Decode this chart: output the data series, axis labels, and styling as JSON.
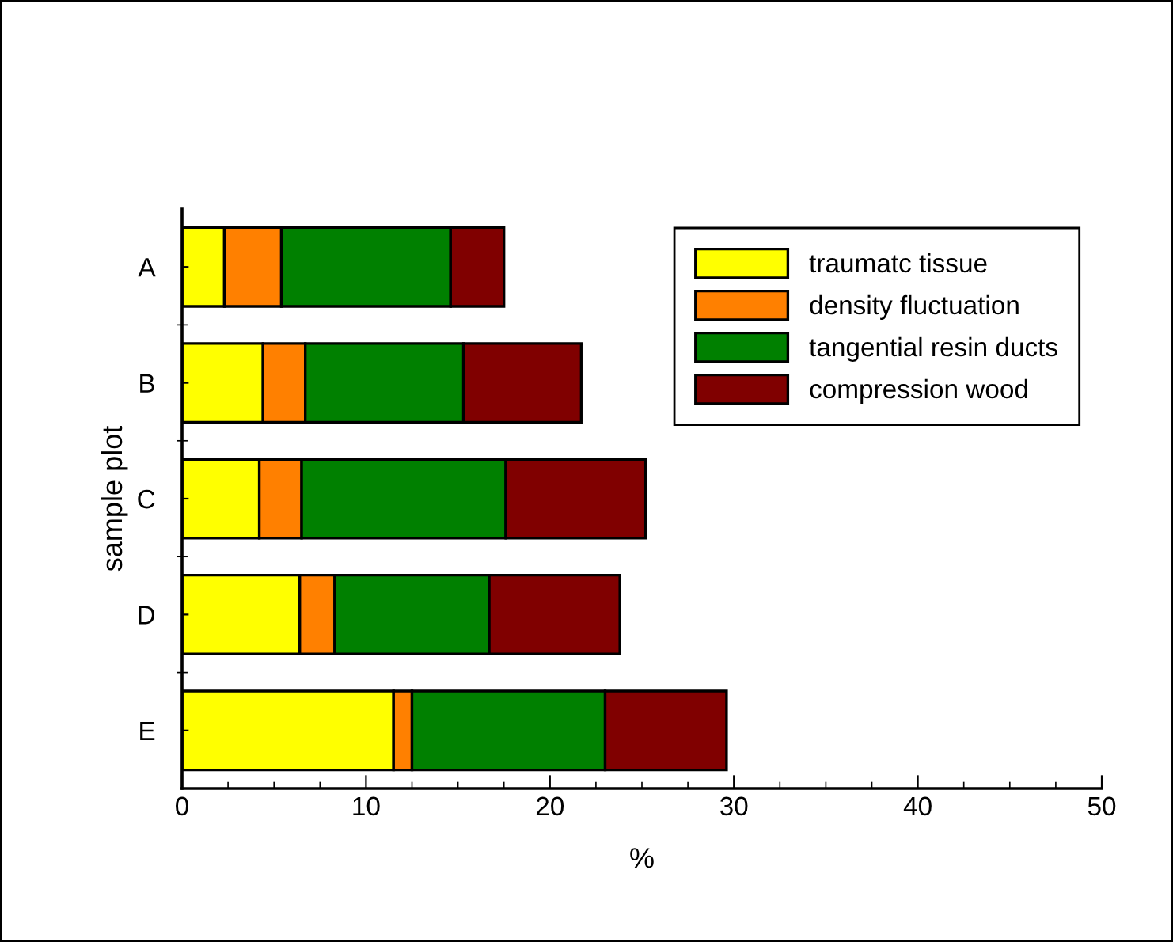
{
  "chart_data": {
    "type": "bar",
    "orientation": "horizontal",
    "stacked": true,
    "xlabel": "%",
    "ylabel": "sample plot",
    "categories": [
      "A",
      "B",
      "C",
      "D",
      "E"
    ],
    "series": [
      {
        "name": "traumatc tissue",
        "color": "#ffff00",
        "values": [
          2.3,
          4.4,
          4.2,
          6.4,
          11.5
        ]
      },
      {
        "name": "density fluctuation",
        "color": "#ff8000",
        "values": [
          3.1,
          2.3,
          2.3,
          1.9,
          1.0
        ]
      },
      {
        "name": "tangential resin ducts",
        "color": "#008000",
        "values": [
          9.2,
          8.6,
          11.1,
          8.4,
          10.5
        ]
      },
      {
        "name": "compression wood",
        "color": "#800000",
        "values": [
          2.9,
          6.4,
          7.6,
          7.1,
          6.6
        ]
      }
    ],
    "xlim": [
      0,
      50
    ],
    "xticks": [
      0,
      10,
      20,
      30,
      40,
      50
    ],
    "legend": "top right",
    "grid": false
  }
}
